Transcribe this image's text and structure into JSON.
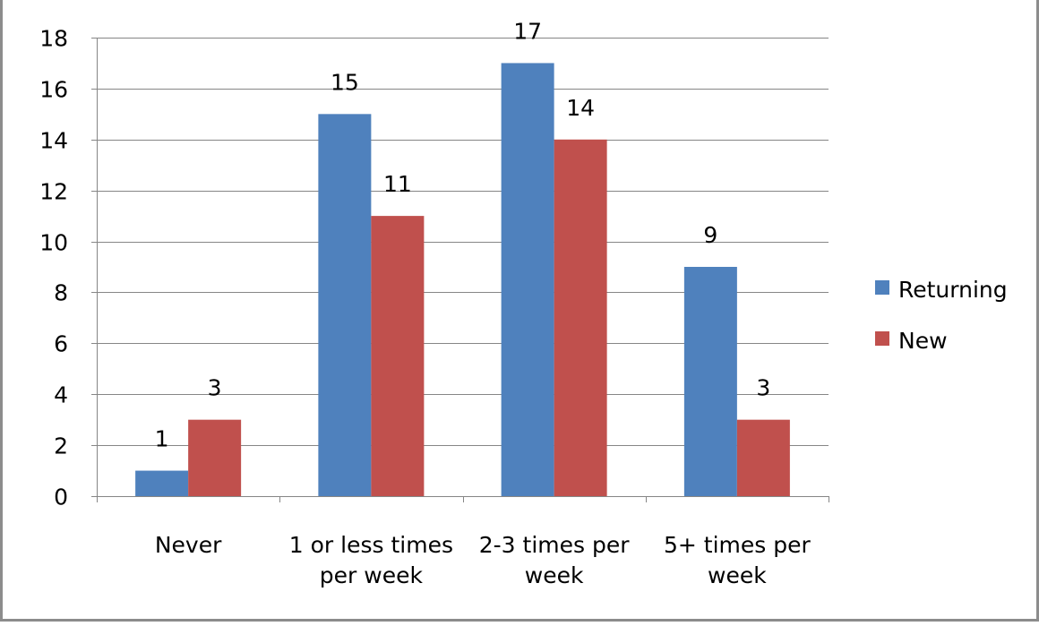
{
  "chart_data": {
    "type": "bar",
    "title": "",
    "xlabel": "",
    "ylabel": "",
    "categories": [
      [
        "Never"
      ],
      [
        "1 or less times",
        "per week"
      ],
      [
        "2-3 times per",
        "week"
      ],
      [
        "5+ times per",
        "week"
      ]
    ],
    "series": [
      {
        "name": "Returning",
        "color": "#4f81bd",
        "values": [
          1,
          15,
          17,
          9
        ]
      },
      {
        "name": "New",
        "color": "#c0504d",
        "values": [
          3,
          11,
          14,
          3
        ]
      }
    ],
    "ylim": [
      0,
      18
    ],
    "yticks": [
      0,
      2,
      4,
      6,
      8,
      10,
      12,
      14,
      16,
      18
    ],
    "grid": true,
    "legend_position": "right",
    "data_labels": true
  }
}
